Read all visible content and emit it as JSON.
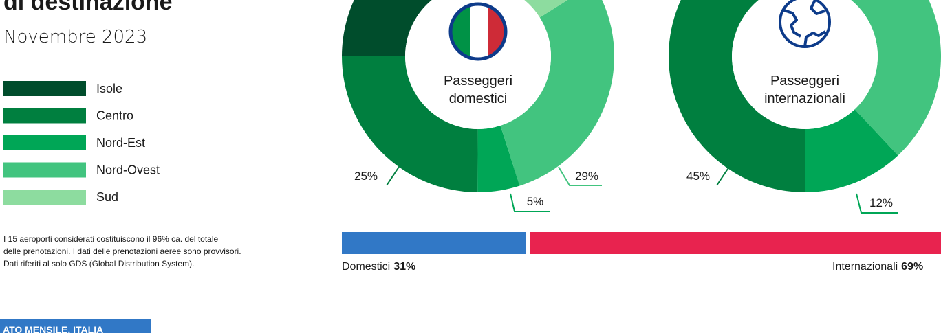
{
  "header": {
    "title": "di destinazione",
    "subtitle": "Novembre 2023"
  },
  "note": [
    "I 15 aeroporti considerati costituiscono il 96% ca. del totale",
    "delle prenotazioni. I dati delle prenotazioni aeree sono provvisori.",
    "Dati riferiti al solo GDS (Global Distribution System)."
  ],
  "button": "ATO MENSILE, ITALIA",
  "chart_data": [
    {
      "type": "donut",
      "title_lines": [
        "Passeggeri",
        "domestici"
      ],
      "categories": [
        "Isole",
        "Centro",
        "Nord-Est",
        "Nord-Ovest",
        "Sud"
      ],
      "colors": [
        "#004d2c",
        "#007f3f",
        "#00a656",
        "#42c47f",
        "#8ddc9f"
      ],
      "values": [
        33,
        25,
        5,
        29,
        8
      ],
      "value_labels": [
        null,
        "25%",
        "5%",
        "29%",
        null
      ]
    },
    {
      "type": "donut",
      "title_lines": [
        "Passeggeri",
        "internazionali"
      ],
      "categories": [
        "Isole",
        "Centro",
        "Nord-Est",
        "Nord-Ovest",
        "Sud"
      ],
      "colors": [
        "#004d2c",
        "#007f3f",
        "#00a656",
        "#42c47f",
        "#8ddc9f"
      ],
      "values": [
        5,
        45,
        12,
        33,
        5
      ],
      "value_labels": [
        null,
        "45%",
        "12%",
        null,
        null
      ]
    },
    {
      "type": "stacked-bar",
      "categories": [
        "Domestici",
        "Internazionali"
      ],
      "colors": [
        "#3178c6",
        "#e8234f"
      ],
      "values": [
        31,
        69
      ],
      "value_labels": [
        "31%",
        "69%"
      ]
    }
  ]
}
